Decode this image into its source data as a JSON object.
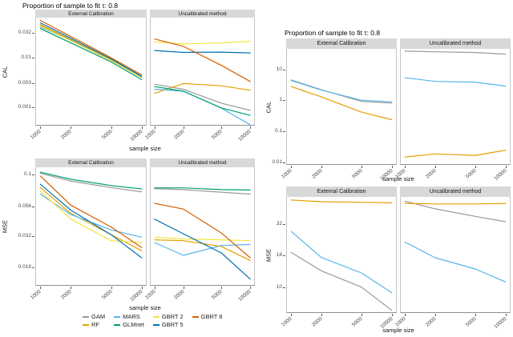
{
  "figure": {
    "left_chart_title": "Proportion of sample to fit τ: 0.8",
    "right_chart_title": "Proportion of sample to fit τ: 0.8"
  },
  "palette": {
    "GAM": "#999999",
    "RF": "#E69F00",
    "MARS": "#56B4E9",
    "GLMnet": "#009E73",
    "GBRT 2": "#F0E442",
    "GBRT 5": "#0072B2",
    "GBRT 8": "#D55E00",
    "gray": "#999999",
    "light-blue": "#56B4E9",
    "orange": "#E69F00"
  },
  "chart_data": [
    {
      "type": "line",
      "title": "Proportion of sample to fit τ: 0.8",
      "ylabel": "CAL",
      "xlabel": "sample size",
      "x_scale": "log",
      "y_scale": "log",
      "grid": "off",
      "facets": [
        "External Calibration",
        "Uncalibrated method"
      ],
      "x": [
        1000,
        2000,
        5000,
        10000
      ],
      "x_tick_labels": [
        "1000",
        "2000",
        "5000",
        "10000"
      ],
      "y_ticks": [
        0.032,
        0.01,
        0.003,
        0.001
      ],
      "y_tick_labels": [
        "0.032",
        "0.01",
        "0.003",
        "0.001"
      ],
      "ylim": [
        0.00042,
        0.065
      ],
      "series": [
        {
          "name": "GAM",
          "color": "#999999",
          "values": {
            "external": [
              0.046,
              0.023,
              0.009,
              0.004
            ],
            "uncalibrated": [
              0.0029,
              0.0023,
              0.0012,
              0.00086
            ]
          }
        },
        {
          "name": "RF",
          "color": "#E69F00",
          "values": {
            "external": [
              0.047,
              0.0235,
              0.0092,
              0.0041
            ],
            "uncalibrated": [
              0.0019,
              0.003,
              0.0027,
              0.0022
            ]
          }
        },
        {
          "name": "MARS",
          "color": "#56B4E9",
          "values": {
            "external": [
              0.042,
              0.0225,
              0.0088,
              0.004
            ],
            "uncalibrated": [
              0.0023,
              0.0021,
              0.00095,
              0.00044
            ]
          }
        },
        {
          "name": "GLMnet",
          "color": "#009E73",
          "values": {
            "external": [
              0.039,
              0.02,
              0.0082,
              0.0036
            ],
            "uncalibrated": [
              0.0026,
              0.0021,
              0.00096,
              0.00068
            ]
          }
        },
        {
          "name": "GBRT 2",
          "color": "#F0E442",
          "values": {
            "external": [
              0.044,
              0.022,
              0.0087,
              0.0039
            ],
            "uncalibrated": [
              0.021,
              0.019,
              0.02,
              0.0215
            ]
          }
        },
        {
          "name": "GBRT 5",
          "color": "#0072B2",
          "values": {
            "external": [
              0.051,
              0.025,
              0.0095,
              0.0042
            ],
            "uncalibrated": [
              0.014,
              0.0128,
              0.013,
              0.0125
            ]
          }
        },
        {
          "name": "GBRT 8",
          "color": "#D55E00",
          "values": {
            "external": [
              0.057,
              0.027,
              0.01,
              0.0045
            ],
            "uncalibrated": [
              0.024,
              0.017,
              0.007,
              0.0033
            ]
          }
        }
      ]
    },
    {
      "type": "line",
      "title": null,
      "ylabel": "MSE",
      "xlabel": "sample size",
      "x_scale": "log",
      "y_scale": "log",
      "grid": "off",
      "facets": [
        "External Calibration",
        "Uncalibrated method"
      ],
      "x": [
        1000,
        2000,
        5000,
        10000
      ],
      "x_tick_labels": [
        "1000",
        "2000",
        "5000",
        "10000"
      ],
      "y_ticks": [
        0.1,
        0.056,
        0.032,
        0.018
      ],
      "y_tick_labels": [
        "0.1",
        "0.056",
        "0.032",
        "0.018"
      ],
      "ylim": [
        0.0128,
        0.115
      ],
      "legend": {
        "position": "bottom",
        "rows": [
          [
            "GAM",
            "MARS",
            "GBRT 2",
            "GBRT 8"
          ],
          [
            "RF",
            "GLMnet",
            "GBRT 5"
          ]
        ]
      },
      "series": [
        {
          "name": "GAM",
          "color": "#999999",
          "values": {
            "external": [
              0.103,
              0.089,
              0.079,
              0.073
            ],
            "uncalibrated": [
              0.0775,
              0.076,
              0.0725,
              0.07
            ]
          }
        },
        {
          "name": "RF",
          "color": "#E69F00",
          "values": {
            "external": [
              0.079,
              0.049,
              0.033,
              0.0245
            ],
            "uncalibrated": [
              0.03,
              0.0295,
              0.0265,
              0.0205
            ]
          }
        },
        {
          "name": "MARS",
          "color": "#56B4E9",
          "values": {
            "external": [
              0.07,
              0.048,
              0.036,
              0.0315
            ],
            "uncalibrated": [
              0.0285,
              0.0225,
              0.027,
              0.0275
            ]
          }
        },
        {
          "name": "GLMnet",
          "color": "#009E73",
          "values": {
            "external": [
              0.105,
              0.092,
              0.082,
              0.077
            ],
            "uncalibrated": [
              0.0785,
              0.0785,
              0.076,
              0.0755
            ]
          }
        },
        {
          "name": "GBRT 2",
          "color": "#F0E442",
          "values": {
            "external": [
              0.074,
              0.044,
              0.0295,
              0.0285
            ],
            "uncalibrated": [
              0.0315,
              0.0305,
              0.03,
              0.0295
            ]
          }
        },
        {
          "name": "GBRT 5",
          "color": "#0072B2",
          "values": {
            "external": [
              0.084,
              0.052,
              0.033,
              0.0215
            ],
            "uncalibrated": [
              0.044,
              0.0335,
              0.0235,
              0.0145
            ]
          }
        },
        {
          "name": "GBRT 8",
          "color": "#D55E00",
          "values": {
            "external": [
              0.098,
              0.057,
              0.038,
              0.026
            ],
            "uncalibrated": [
              0.059,
              0.053,
              0.034,
              0.0215
            ]
          }
        }
      ]
    },
    {
      "type": "line",
      "title": "Proportion of sample to fit τ: 0.8",
      "ylabel": "CAL",
      "xlabel": "sample size",
      "x_scale": "log",
      "y_scale": "log",
      "grid": "off",
      "facets": [
        "External Calibration",
        "Uncalibrated method"
      ],
      "x": [
        1000,
        2000,
        5000,
        10000
      ],
      "x_tick_labels": [
        "1000",
        "2000",
        "5000",
        "10000"
      ],
      "y_ticks": [
        10,
        1,
        0.1,
        0.01
      ],
      "y_tick_labels": [
        "10",
        "1",
        "0.1",
        "0.01"
      ],
      "ylim": [
        0.0084,
        46
      ],
      "series": [
        {
          "name": "gray",
          "color": "#999999",
          "values": {
            "external": [
              4.6,
              2.2,
              0.93,
              0.82
            ],
            "uncalibrated": [
              39,
              37,
              35,
              31
            ]
          }
        },
        {
          "name": "light-blue",
          "color": "#56B4E9",
          "values": {
            "external": [
              4.4,
              2.15,
              1.02,
              0.9
            ],
            "uncalibrated": [
              5.4,
              4.1,
              3.9,
              2.9
            ]
          }
        },
        {
          "name": "orange",
          "color": "#E69F00",
          "values": {
            "external": [
              2.8,
              1.3,
              0.42,
              0.24
            ],
            "uncalibrated": [
              0.015,
              0.019,
              0.017,
              0.025
            ]
          }
        }
      ]
    },
    {
      "type": "line",
      "title": null,
      "ylabel": "MSE",
      "xlabel": "sample size",
      "x_scale": "log",
      "y_scale": "log",
      "grid": "off",
      "facets": [
        "External Calibration",
        "Uncalibrated method"
      ],
      "x": [
        1000,
        2000,
        5000,
        10000
      ],
      "x_tick_labels": [
        "1000",
        "2000",
        "5000",
        "10000"
      ],
      "y_ticks": [
        32,
        18,
        10
      ],
      "y_tick_labels": [
        "32",
        "18",
        "10"
      ],
      "ylim": [
        6.2,
        53
      ],
      "series": [
        {
          "name": "gray",
          "color": "#999999",
          "values": {
            "external": [
              19,
              13.5,
              10,
              6.5
            ],
            "uncalibrated": [
              49,
              42.5,
              37,
              33.5
            ]
          }
        },
        {
          "name": "light-blue",
          "color": "#56B4E9",
          "values": {
            "external": [
              28,
              17.3,
              13,
              9
            ],
            "uncalibrated": [
              23,
              17.2,
              14,
              11
            ]
          }
        },
        {
          "name": "orange",
          "color": "#E69F00",
          "values": {
            "external": [
              50,
              48.5,
              48,
              47.5
            ],
            "uncalibrated": [
              47,
              46.5,
              46.5,
              47
            ]
          }
        }
      ]
    }
  ]
}
